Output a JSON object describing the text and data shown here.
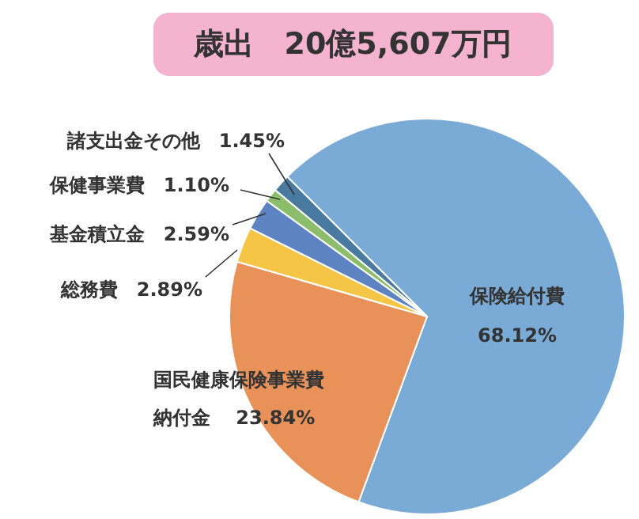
{
  "chart_data": {
    "type": "pie",
    "title": "歳出　20億5,607万円",
    "categories": [
      "保険給付費",
      "国民健康保険事業費納付金",
      "総務費",
      "基金積立金",
      "保健事業費",
      "諸支出金その他"
    ],
    "values": [
      68.12,
      23.84,
      2.89,
      2.59,
      1.1,
      1.45
    ],
    "value_labels": [
      "68.12%",
      "23.84%",
      "2.89%",
      "2.59%",
      "1.10%",
      "1.45%"
    ],
    "colors": [
      "#7aaad6",
      "#e8925a",
      "#f5c646",
      "#5d83c2",
      "#8cbd6a",
      "#4a7aa0"
    ],
    "legend": false
  }
}
